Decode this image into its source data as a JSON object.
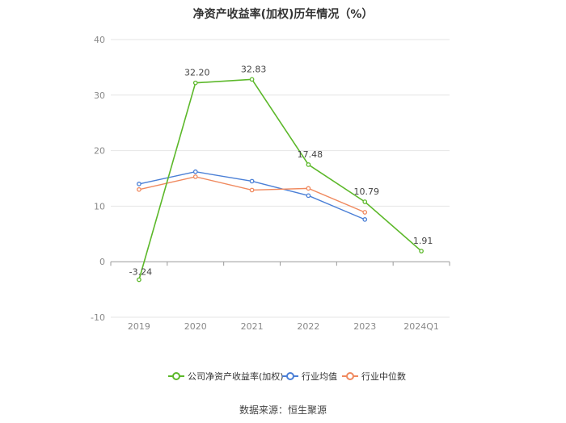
{
  "chart_data": {
    "type": "line",
    "title": "净资产收益率(加权)历年情况（%）",
    "categories": [
      "2019",
      "2020",
      "2021",
      "2022",
      "2023",
      "2024Q1"
    ],
    "ylim": [
      -10,
      40
    ],
    "yticks": [
      "-10",
      "0",
      "10",
      "20",
      "30",
      "40"
    ],
    "grid": true,
    "legend_position": "bottom",
    "series": [
      {
        "name": "公司净资产收益率(加权)",
        "color": "#5cb82a",
        "values": [
          -3.24,
          32.2,
          32.83,
          17.48,
          10.79,
          1.91
        ],
        "labels": [
          "-3.24",
          "32.20",
          "32.83",
          "17.48",
          "10.79",
          "1.91"
        ]
      },
      {
        "name": "行业均值",
        "color": "#4a7fd6",
        "values": [
          14.0,
          16.2,
          14.5,
          11.9,
          7.6,
          null
        ]
      },
      {
        "name": "行业中位数",
        "color": "#f0895e",
        "values": [
          13.0,
          15.3,
          12.9,
          13.2,
          8.9,
          null
        ]
      }
    ]
  },
  "source": "数据来源：恒生聚源"
}
